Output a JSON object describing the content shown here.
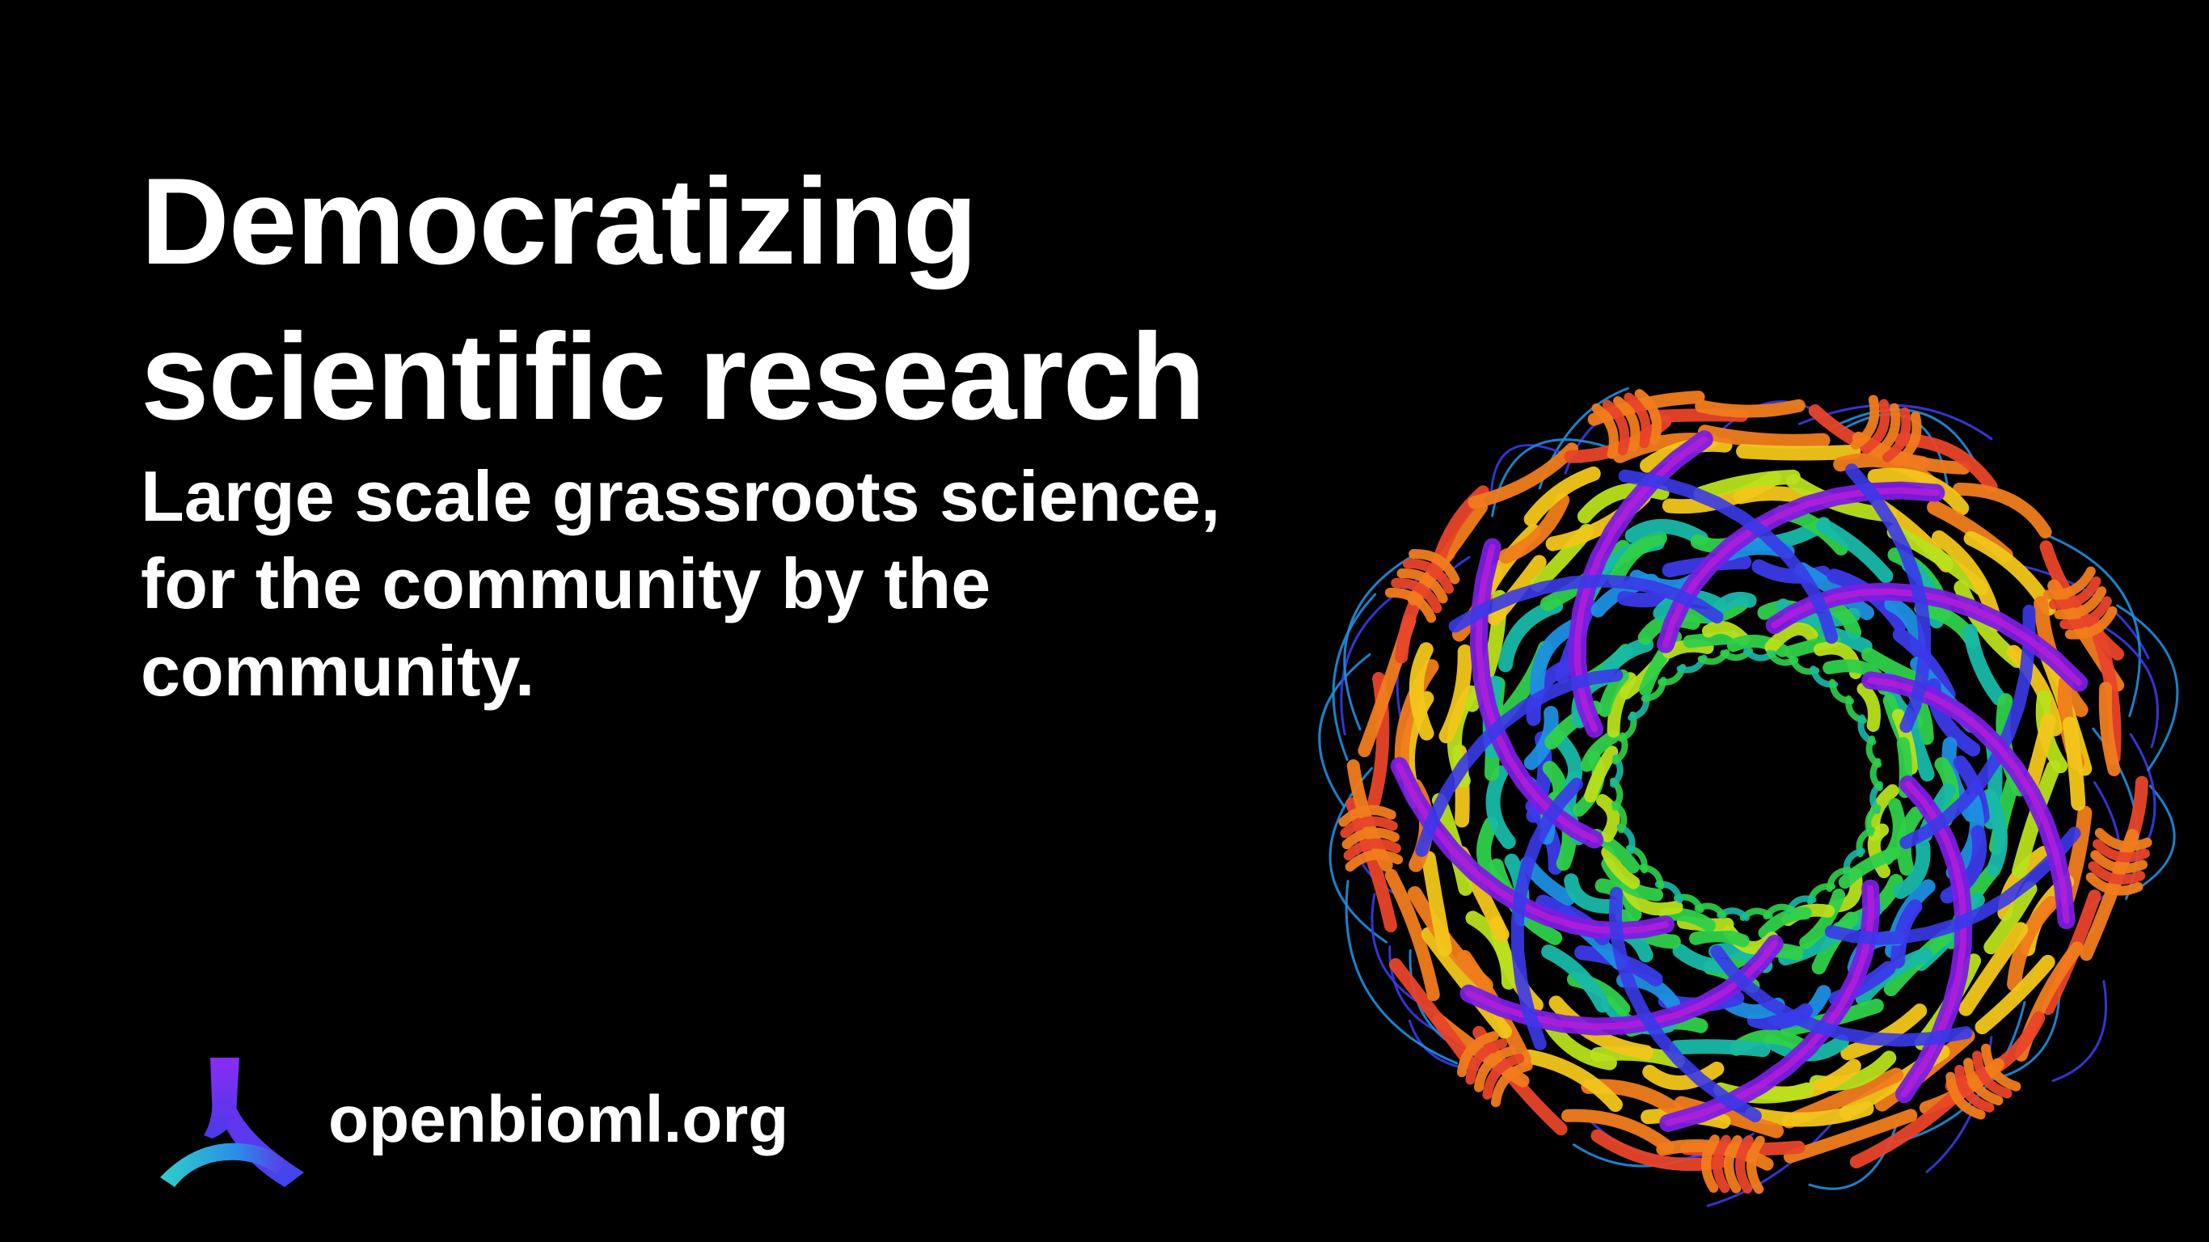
{
  "headline": {
    "line1": "Democratizing",
    "line2": "scientific research"
  },
  "subheadline": {
    "line1": "Large scale grassroots science,",
    "line2": "for the community by the",
    "line3": "community."
  },
  "brand": {
    "url": "openbioml.org",
    "logo_icon": "openbioml-logo-icon"
  },
  "illustration": {
    "icon": "protein-ribbon-ring-icon",
    "colors": [
      "#e8442a",
      "#f07c1c",
      "#f2c61a",
      "#b8e01c",
      "#2fd04a",
      "#18b8a8",
      "#1e8fe0",
      "#3a3ae8",
      "#7a1ee0",
      "#b01ed8"
    ]
  },
  "colors": {
    "background": "#000000",
    "text": "#ffffff",
    "logo_gradient_start": "#7a2cf0",
    "logo_gradient_end": "#2fd0c8"
  }
}
